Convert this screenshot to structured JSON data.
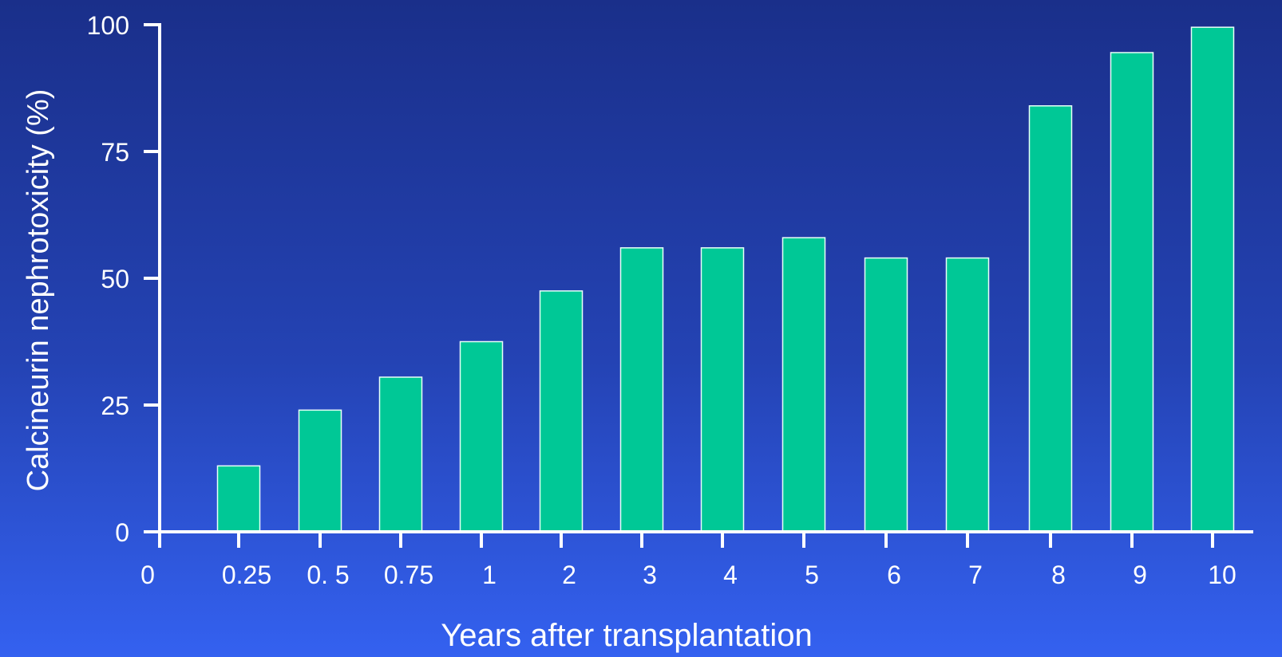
{
  "chart_data": {
    "type": "bar",
    "title": "",
    "xlabel": "Years after transplantation",
    "ylabel": "Calcineurin nephrotoxicity (%)",
    "ylim": [
      0,
      100
    ],
    "yticks": [
      0,
      25,
      50,
      75,
      100
    ],
    "x_zero_label": "0",
    "categories": [
      "0.25",
      "0. 5",
      "0.75",
      "1",
      "2",
      "3",
      "4",
      "5",
      "6",
      "7",
      "8",
      "9",
      "10"
    ],
    "values": [
      13,
      24,
      30.5,
      37.5,
      47.5,
      56,
      56,
      58,
      54,
      54,
      84,
      94.5,
      99.5
    ],
    "grid": false,
    "legend": "none",
    "colors": {
      "bar_fill": "#00c896",
      "bar_stroke": "#e8fff8",
      "axis": "#ffffff",
      "text": "#ffffff"
    }
  }
}
